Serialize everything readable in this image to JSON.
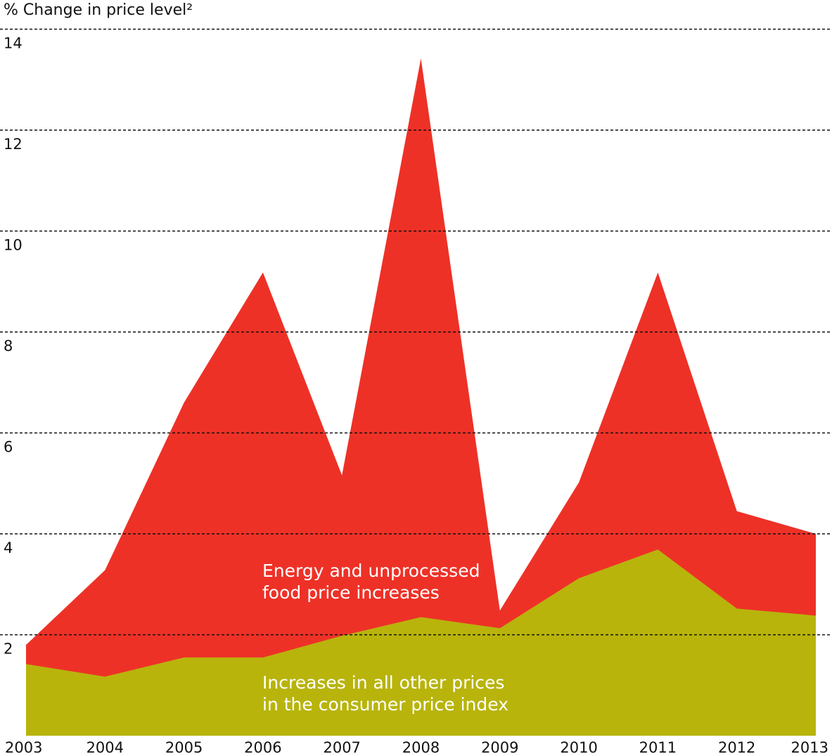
{
  "chart_data": {
    "type": "area",
    "stacked": true,
    "title": "% Change in price level²",
    "ylabel": "% Change in price level²",
    "xlabel": "",
    "ylim": [
      0,
      14.2
    ],
    "yticks": [
      2,
      4,
      6,
      8,
      10,
      12,
      14
    ],
    "grid": "horizontal dashed",
    "categories": [
      "2003",
      "2004",
      "2005",
      "2006",
      "2007",
      "2008",
      "2009",
      "2010",
      "2011",
      "2012",
      "2013"
    ],
    "series": [
      {
        "name": "Increases in all other prices in the consumer price index",
        "color": "#b8b40c",
        "values": [
          1.42,
          1.17,
          1.55,
          1.55,
          1.98,
          2.35,
          2.13,
          3.12,
          3.69,
          2.52,
          2.38
        ]
      },
      {
        "name": "Energy and unprocessed food price increases",
        "color": "#ee3127",
        "total_values": [
          1.8,
          3.28,
          6.6,
          9.18,
          5.16,
          13.42,
          2.48,
          5.02,
          9.18,
          4.45,
          4.0
        ]
      }
    ],
    "annotations": {
      "red_line1": "Energy and unprocessed",
      "red_line2": "food price increases",
      "green_line1": "Increases in all other prices",
      "green_line2": "in the consumer price index"
    }
  }
}
